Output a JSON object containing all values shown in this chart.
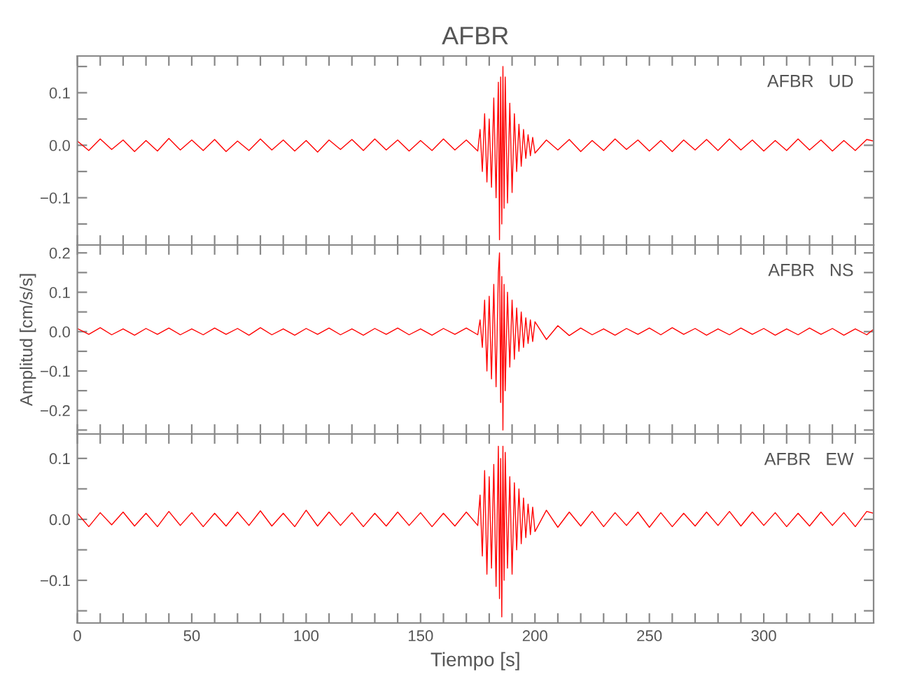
{
  "chart_data": [
    {
      "type": "line",
      "title": "AFBR",
      "annotations": [
        "AFBR   UD"
      ],
      "tick_labels": "y",
      "xlim": [
        0,
        348
      ],
      "ylim": [
        -0.19,
        0.17
      ],
      "xticks": [
        {
          "value": 0,
          "label": null
        },
        {
          "value": 10,
          "label": null
        },
        {
          "value": 20,
          "label": null
        },
        {
          "value": 30,
          "label": null
        },
        {
          "value": 40,
          "label": null
        },
        {
          "value": 50,
          "label": null
        },
        {
          "value": 60,
          "label": null
        },
        {
          "value": 70,
          "label": null
        },
        {
          "value": 80,
          "label": null
        },
        {
          "value": 90,
          "label": null
        },
        {
          "value": 100,
          "label": null
        },
        {
          "value": 110,
          "label": null
        },
        {
          "value": 120,
          "label": null
        },
        {
          "value": 130,
          "label": null
        },
        {
          "value": 140,
          "label": null
        },
        {
          "value": 150,
          "label": null
        },
        {
          "value": 160,
          "label": null
        },
        {
          "value": 170,
          "label": null
        },
        {
          "value": 180,
          "label": null
        },
        {
          "value": 190,
          "label": null
        },
        {
          "value": 200,
          "label": null
        },
        {
          "value": 210,
          "label": null
        },
        {
          "value": 220,
          "label": null
        },
        {
          "value": 230,
          "label": null
        },
        {
          "value": 240,
          "label": null
        },
        {
          "value": 250,
          "label": null
        },
        {
          "value": 260,
          "label": null
        },
        {
          "value": 270,
          "label": null
        },
        {
          "value": 280,
          "label": null
        },
        {
          "value": 290,
          "label": null
        },
        {
          "value": 300,
          "label": null
        },
        {
          "value": 310,
          "label": null
        },
        {
          "value": 320,
          "label": null
        },
        {
          "value": 330,
          "label": null
        },
        {
          "value": 340,
          "label": null
        }
      ],
      "yticks": [
        {
          "value": -0.15,
          "label": null
        },
        {
          "value": -0.1,
          "label": "−0.1"
        },
        {
          "value": -0.05,
          "label": null
        },
        {
          "value": 0.0,
          "label": "0.0"
        },
        {
          "value": 0.05,
          "label": null
        },
        {
          "value": 0.1,
          "label": "0.1"
        },
        {
          "value": 0.15,
          "label": null
        }
      ],
      "series": [
        {
          "color": "#ff0000",
          "x": [
            0,
            5,
            10,
            15,
            20,
            25,
            30,
            35,
            40,
            45,
            50,
            55,
            60,
            65,
            70,
            75,
            80,
            85,
            90,
            95,
            100,
            105,
            110,
            115,
            120,
            125,
            130,
            135,
            140,
            145,
            150,
            155,
            160,
            165,
            170,
            175,
            176,
            177,
            178,
            179,
            180,
            181,
            182,
            183,
            184,
            184.5,
            185,
            185.5,
            186,
            186.5,
            187,
            188,
            189,
            190,
            191,
            192,
            193,
            194,
            195,
            196,
            197,
            198,
            199,
            200,
            205,
            210,
            215,
            220,
            225,
            230,
            235,
            240,
            245,
            250,
            255,
            260,
            265,
            270,
            275,
            280,
            285,
            290,
            295,
            300,
            305,
            310,
            315,
            320,
            325,
            330,
            335,
            340,
            345,
            348
          ],
          "values": [
            0.008,
            -0.01,
            0.012,
            -0.008,
            0.01,
            -0.012,
            0.009,
            -0.011,
            0.013,
            -0.009,
            0.01,
            -0.01,
            0.011,
            -0.012,
            0.008,
            -0.01,
            0.012,
            -0.009,
            0.01,
            -0.011,
            0.009,
            -0.013,
            0.01,
            -0.008,
            0.011,
            -0.01,
            0.012,
            -0.009,
            0.01,
            -0.011,
            0.009,
            -0.01,
            0.012,
            -0.009,
            0.01,
            -0.011,
            0.03,
            -0.05,
            0.06,
            -0.07,
            0.05,
            -0.08,
            0.09,
            -0.1,
            0.12,
            -0.18,
            0.13,
            -0.15,
            0.15,
            -0.12,
            0.13,
            -0.11,
            0.08,
            -0.09,
            0.06,
            -0.05,
            0.04,
            -0.04,
            0.03,
            -0.025,
            0.02,
            -0.02,
            0.015,
            -0.015,
            0.01,
            -0.009,
            0.011,
            -0.012,
            0.009,
            -0.01,
            0.012,
            -0.008,
            0.01,
            -0.011,
            0.009,
            -0.012,
            0.01,
            -0.009,
            0.011,
            -0.01,
            0.012,
            -0.009,
            0.01,
            -0.011,
            0.009,
            -0.01,
            0.012,
            -0.009,
            0.01,
            -0.011,
            0.009,
            -0.01,
            0.011,
            0.008
          ]
        }
      ]
    },
    {
      "type": "line",
      "ylabel": "Amplitud [cm/s/s]",
      "annotations": [
        "AFBR   NS"
      ],
      "tick_labels": "y",
      "xlim": [
        0,
        348
      ],
      "ylim": [
        -0.26,
        0.22
      ],
      "xticks": [
        {
          "value": 0,
          "label": null
        },
        {
          "value": 10,
          "label": null
        },
        {
          "value": 20,
          "label": null
        },
        {
          "value": 30,
          "label": null
        },
        {
          "value": 40,
          "label": null
        },
        {
          "value": 50,
          "label": null
        },
        {
          "value": 60,
          "label": null
        },
        {
          "value": 70,
          "label": null
        },
        {
          "value": 80,
          "label": null
        },
        {
          "value": 90,
          "label": null
        },
        {
          "value": 100,
          "label": null
        },
        {
          "value": 110,
          "label": null
        },
        {
          "value": 120,
          "label": null
        },
        {
          "value": 130,
          "label": null
        },
        {
          "value": 140,
          "label": null
        },
        {
          "value": 150,
          "label": null
        },
        {
          "value": 160,
          "label": null
        },
        {
          "value": 170,
          "label": null
        },
        {
          "value": 180,
          "label": null
        },
        {
          "value": 190,
          "label": null
        },
        {
          "value": 200,
          "label": null
        },
        {
          "value": 210,
          "label": null
        },
        {
          "value": 220,
          "label": null
        },
        {
          "value": 230,
          "label": null
        },
        {
          "value": 240,
          "label": null
        },
        {
          "value": 250,
          "label": null
        },
        {
          "value": 260,
          "label": null
        },
        {
          "value": 270,
          "label": null
        },
        {
          "value": 280,
          "label": null
        },
        {
          "value": 290,
          "label": null
        },
        {
          "value": 300,
          "label": null
        },
        {
          "value": 310,
          "label": null
        },
        {
          "value": 320,
          "label": null
        },
        {
          "value": 330,
          "label": null
        },
        {
          "value": 340,
          "label": null
        }
      ],
      "yticks": [
        {
          "value": -0.25,
          "label": null
        },
        {
          "value": -0.2,
          "label": "−0.2"
        },
        {
          "value": -0.15,
          "label": null
        },
        {
          "value": -0.1,
          "label": "−0.1"
        },
        {
          "value": -0.05,
          "label": null
        },
        {
          "value": 0.0,
          "label": "0.0"
        },
        {
          "value": 0.05,
          "label": null
        },
        {
          "value": 0.1,
          "label": "0.1"
        },
        {
          "value": 0.15,
          "label": null
        },
        {
          "value": 0.2,
          "label": "0.2"
        }
      ],
      "series": [
        {
          "color": "#ff0000",
          "x": [
            0,
            5,
            10,
            15,
            20,
            25,
            30,
            35,
            40,
            45,
            50,
            55,
            60,
            65,
            70,
            75,
            80,
            85,
            90,
            95,
            100,
            105,
            110,
            115,
            120,
            125,
            130,
            135,
            140,
            145,
            150,
            155,
            160,
            165,
            170,
            175,
            176,
            177,
            178,
            179,
            180,
            181,
            182,
            183,
            184,
            184.5,
            185,
            185.5,
            186,
            186.5,
            187,
            188,
            189,
            190,
            191,
            192,
            193,
            194,
            195,
            196,
            197,
            198,
            199,
            200,
            205,
            210,
            215,
            220,
            225,
            230,
            235,
            240,
            245,
            250,
            255,
            260,
            265,
            270,
            275,
            280,
            285,
            290,
            295,
            300,
            305,
            310,
            315,
            320,
            325,
            330,
            335,
            340,
            345,
            348
          ],
          "values": [
            0.008,
            -0.007,
            0.01,
            -0.008,
            0.007,
            -0.009,
            0.008,
            -0.007,
            0.009,
            -0.008,
            0.007,
            -0.008,
            0.009,
            -0.007,
            0.008,
            -0.009,
            0.01,
            -0.008,
            0.007,
            -0.009,
            0.008,
            -0.007,
            0.009,
            -0.008,
            0.007,
            -0.009,
            0.008,
            -0.007,
            0.009,
            -0.008,
            0.007,
            -0.009,
            0.008,
            -0.007,
            0.009,
            -0.008,
            0.03,
            -0.04,
            0.08,
            -0.1,
            0.09,
            -0.12,
            0.12,
            -0.14,
            0.15,
            0.2,
            -0.18,
            0.14,
            -0.25,
            0.12,
            -0.15,
            0.1,
            -0.09,
            0.08,
            -0.07,
            0.06,
            -0.05,
            0.05,
            -0.04,
            0.035,
            -0.03,
            0.03,
            -0.025,
            0.025,
            -0.02,
            0.015,
            -0.01,
            0.009,
            -0.008,
            0.007,
            -0.009,
            0.008,
            -0.007,
            0.009,
            -0.008,
            0.01,
            -0.007,
            0.008,
            -0.009,
            0.007,
            -0.008,
            0.009,
            -0.007,
            0.008,
            -0.009,
            0.007,
            -0.008,
            0.009,
            -0.007,
            0.008,
            -0.009,
            0.007,
            -0.008,
            0.006
          ]
        }
      ]
    },
    {
      "type": "line",
      "xlabel": "Tiempo [s]",
      "annotations": [
        "AFBR   EW"
      ],
      "xlim": [
        0,
        348
      ],
      "ylim": [
        -0.17,
        0.14
      ],
      "xticks": [
        {
          "value": 0,
          "label": "0"
        },
        {
          "value": 10,
          "label": null
        },
        {
          "value": 20,
          "label": null
        },
        {
          "value": 30,
          "label": null
        },
        {
          "value": 40,
          "label": null
        },
        {
          "value": 50,
          "label": "50"
        },
        {
          "value": 60,
          "label": null
        },
        {
          "value": 70,
          "label": null
        },
        {
          "value": 80,
          "label": null
        },
        {
          "value": 90,
          "label": null
        },
        {
          "value": 100,
          "label": "100"
        },
        {
          "value": 110,
          "label": null
        },
        {
          "value": 120,
          "label": null
        },
        {
          "value": 130,
          "label": null
        },
        {
          "value": 140,
          "label": null
        },
        {
          "value": 150,
          "label": "150"
        },
        {
          "value": 160,
          "label": null
        },
        {
          "value": 170,
          "label": null
        },
        {
          "value": 180,
          "label": null
        },
        {
          "value": 190,
          "label": null
        },
        {
          "value": 200,
          "label": "200"
        },
        {
          "value": 210,
          "label": null
        },
        {
          "value": 220,
          "label": null
        },
        {
          "value": 230,
          "label": null
        },
        {
          "value": 240,
          "label": null
        },
        {
          "value": 250,
          "label": "250"
        },
        {
          "value": 260,
          "label": null
        },
        {
          "value": 270,
          "label": null
        },
        {
          "value": 280,
          "label": null
        },
        {
          "value": 290,
          "label": null
        },
        {
          "value": 300,
          "label": "300"
        },
        {
          "value": 310,
          "label": null
        },
        {
          "value": 320,
          "label": null
        },
        {
          "value": 330,
          "label": null
        },
        {
          "value": 340,
          "label": null
        }
      ],
      "yticks": [
        {
          "value": -0.15,
          "label": null
        },
        {
          "value": -0.1,
          "label": "−0.1"
        },
        {
          "value": -0.05,
          "label": null
        },
        {
          "value": 0.0,
          "label": "0.0"
        },
        {
          "value": 0.05,
          "label": null
        },
        {
          "value": 0.1,
          "label": "0.1"
        }
      ],
      "series": [
        {
          "color": "#ff0000",
          "x": [
            0,
            5,
            10,
            15,
            20,
            25,
            30,
            35,
            40,
            45,
            50,
            55,
            60,
            65,
            70,
            75,
            80,
            85,
            90,
            95,
            100,
            105,
            110,
            115,
            120,
            125,
            130,
            135,
            140,
            145,
            150,
            155,
            160,
            165,
            170,
            175,
            176,
            177,
            178,
            179,
            180,
            181,
            182,
            183,
            184,
            184.5,
            185,
            185.5,
            186,
            186.5,
            187,
            188,
            189,
            190,
            191,
            192,
            193,
            194,
            195,
            196,
            197,
            198,
            199,
            200,
            205,
            210,
            215,
            220,
            225,
            230,
            235,
            240,
            245,
            250,
            255,
            260,
            265,
            270,
            275,
            280,
            285,
            290,
            295,
            300,
            305,
            310,
            315,
            320,
            325,
            330,
            335,
            340,
            345,
            348
          ],
          "values": [
            0.01,
            -0.012,
            0.011,
            -0.009,
            0.012,
            -0.011,
            0.01,
            -0.012,
            0.013,
            -0.01,
            0.011,
            -0.012,
            0.01,
            -0.011,
            0.012,
            -0.01,
            0.014,
            -0.011,
            0.01,
            -0.012,
            0.015,
            -0.011,
            0.012,
            -0.01,
            0.011,
            -0.012,
            0.01,
            -0.011,
            0.012,
            -0.01,
            0.011,
            -0.012,
            0.01,
            -0.011,
            0.012,
            -0.01,
            0.04,
            -0.06,
            0.08,
            -0.09,
            0.07,
            -0.08,
            0.09,
            -0.11,
            0.12,
            -0.13,
            0.1,
            -0.16,
            0.12,
            -0.1,
            0.11,
            -0.08,
            0.07,
            -0.09,
            0.06,
            -0.05,
            0.05,
            -0.04,
            0.035,
            -0.03,
            0.025,
            -0.025,
            0.02,
            -0.02,
            0.015,
            -0.013,
            0.012,
            -0.011,
            0.013,
            -0.012,
            0.011,
            -0.01,
            0.012,
            -0.013,
            0.011,
            -0.012,
            0.01,
            -0.011,
            0.012,
            -0.01,
            0.013,
            -0.011,
            0.012,
            -0.01,
            0.011,
            -0.012,
            0.01,
            -0.011,
            0.012,
            -0.01,
            0.011,
            -0.012,
            0.013,
            0.01
          ]
        }
      ]
    }
  ]
}
